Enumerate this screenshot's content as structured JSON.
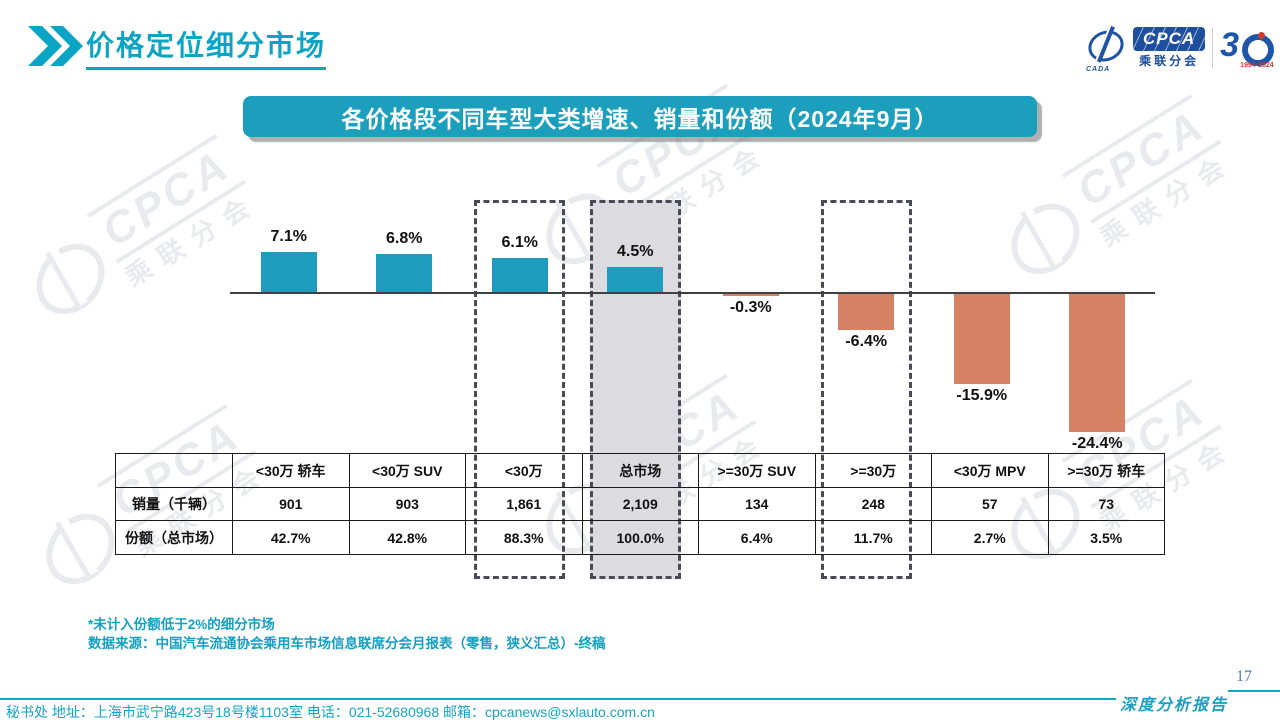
{
  "page": {
    "title": "价格定位细分市场",
    "page_number": "17",
    "report_label": "深度分析报告",
    "contact": "秘书处  地址：上海市武宁路423号18号楼1103室 电话：021-52680968  邮箱：cpcanews@sxlauto.com.cn"
  },
  "logo": {
    "emblem_text": "CADA",
    "badge": "CPCA",
    "badge_sub": "乘联分会",
    "anniversary": "3",
    "anniversary_years": "1994-2024"
  },
  "banner": {
    "title": "各价格段不同车型大类增速、销量和份额（2024年9月）"
  },
  "watermark": {
    "big": "CPCA",
    "small": "乘联分会"
  },
  "notes": [
    "*未计入份额低于2%的细分市场",
    "数据来源：中国汽车流通协会乘用车市场信息联席分会月报表（零售，狭义汇总）-终稿"
  ],
  "chart_data": {
    "type": "bar",
    "title": "各价格段不同车型大类增速、销量和份额（2024年9月）",
    "categories": [
      "<30万 轿车",
      "<30万 SUV",
      "<30万",
      "总市场",
      ">=30万 SUV",
      ">=30万",
      "<30万 MPV",
      ">=30万 轿车"
    ],
    "series": [
      {
        "name": "增速(%)",
        "values": [
          7.1,
          6.8,
          6.1,
          4.5,
          -0.3,
          -6.4,
          -15.9,
          -24.4
        ]
      },
      {
        "name": "销量（千辆）",
        "values": [
          901,
          903,
          1861,
          2109,
          134,
          248,
          57,
          73
        ]
      },
      {
        "name": "份额（总市场）(%)",
        "values": [
          42.7,
          42.8,
          88.3,
          100.0,
          6.4,
          11.7,
          2.7,
          3.5
        ]
      }
    ],
    "bar_labels": [
      "7.1%",
      "6.8%",
      "6.1%",
      "4.5%",
      "-0.3%",
      "-6.4%",
      "-15.9%",
      "-24.4%"
    ],
    "highlight": {
      "dashed_columns": [
        "<30万",
        "总市场",
        ">=30万"
      ],
      "filled_column": "总市场"
    },
    "colors": {
      "positive": "#1f9cbd",
      "negative": "#d78164",
      "highlight_fill": "#dbdbe0",
      "accent_teal": "#0ca4c4"
    },
    "baseline": 0,
    "grid": false,
    "legend": false
  },
  "table": {
    "corner": "",
    "columns": [
      "<30万 轿车",
      "<30万 SUV",
      "<30万",
      "总市场",
      ">=30万 SUV",
      ">=30万",
      "<30万 MPV",
      ">=30万 轿车"
    ],
    "row_headers": [
      "销量（千辆）",
      "份额（总市场）"
    ],
    "rows": [
      [
        "901",
        "903",
        "1,861",
        "2,109",
        "134",
        "248",
        "57",
        "73"
      ],
      [
        "42.7%",
        "42.8%",
        "88.3%",
        "100.0%",
        "6.4%",
        "11.7%",
        "2.7%",
        "3.5%"
      ]
    ]
  }
}
